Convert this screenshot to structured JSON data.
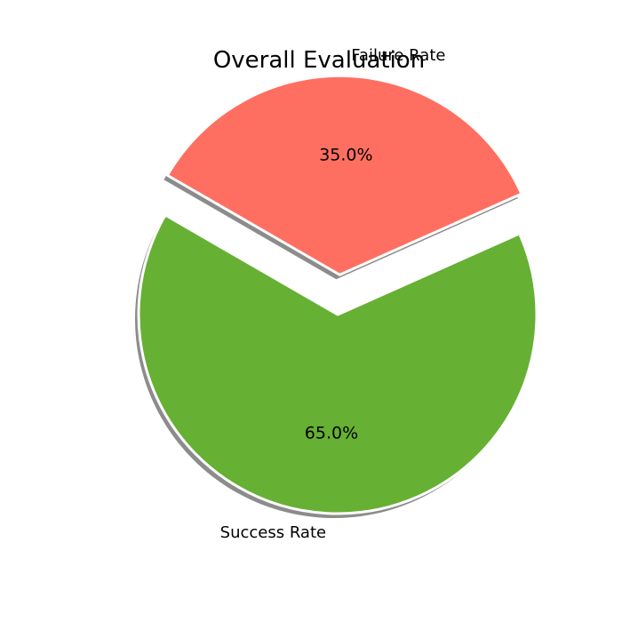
{
  "chart_data": {
    "type": "pie",
    "title": "Overall Evaluation",
    "categories": [
      "Success Rate",
      "Failure Rate"
    ],
    "values": [
      65.0,
      35.0
    ],
    "value_labels": [
      "65.0%",
      "35.0%"
    ],
    "colors": [
      "#66b033",
      "#ff6f61"
    ],
    "exploded": [
      false,
      true
    ],
    "shadow": true,
    "start_angle_deg": 150,
    "direction": "counterclockwise"
  }
}
